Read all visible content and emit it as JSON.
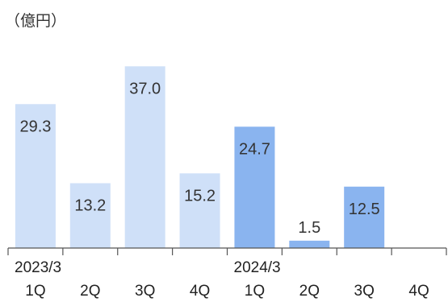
{
  "chart_data": {
    "type": "bar",
    "unit_label": "（億円）",
    "categories": [
      "1Q",
      "2Q",
      "3Q",
      "4Q",
      "1Q",
      "2Q",
      "3Q",
      "4Q"
    ],
    "group_labels": [
      "2023/3",
      "",
      "",
      "",
      "2024/3",
      "",
      "",
      ""
    ],
    "values": [
      29.3,
      13.2,
      37.0,
      15.2,
      24.7,
      1.5,
      12.5,
      null
    ],
    "value_labels": [
      "29.3",
      "13.2",
      "37.0",
      "15.2",
      "24.7",
      "1.5",
      "12.5",
      ""
    ],
    "ylim": [
      0,
      40
    ],
    "grid": false,
    "colors": {
      "fy2023": "#cfe0f8",
      "fy2024": "#8ab4ef",
      "axis": "#555555"
    }
  }
}
